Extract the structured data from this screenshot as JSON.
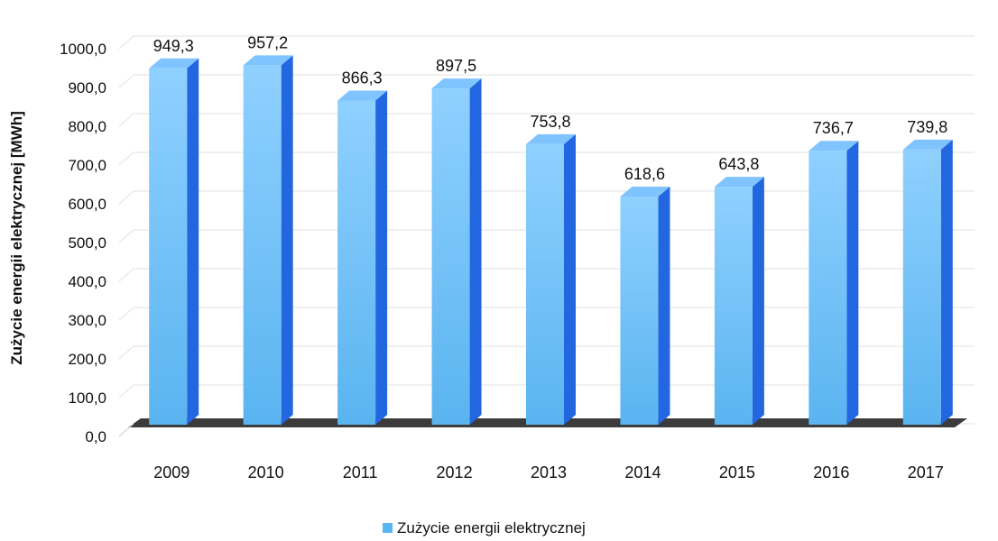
{
  "chart_data": {
    "type": "bar",
    "categories": [
      "2009",
      "2010",
      "2011",
      "2012",
      "2013",
      "2014",
      "2015",
      "2016",
      "2017"
    ],
    "series": [
      {
        "name": "Zużycie energii elektrycznej",
        "values": [
          949.3,
          957.2,
          866.3,
          897.5,
          753.8,
          618.6,
          643.8,
          736.7,
          739.8
        ],
        "value_labels": [
          "949,3",
          "957,2",
          "866,3",
          "897,5",
          "753,8",
          "618,6",
          "643,8",
          "736,7",
          "739,8"
        ]
      }
    ],
    "ylabel": "Zużycie energii elektrycznej   [MWh]",
    "ylim": [
      0,
      1000
    ],
    "yticks": [
      0,
      100,
      200,
      300,
      400,
      500,
      600,
      700,
      800,
      900,
      1000
    ],
    "ytick_labels": [
      "0,0",
      "100,0",
      "200,0",
      "300,0",
      "400,0",
      "500,0",
      "600,0",
      "700,0",
      "800,0",
      "900,0",
      "1000,0"
    ],
    "grid": true,
    "legend_position": "bottom",
    "style": "3d-columns",
    "colors": {
      "bar_front_top": "#8fd0ff",
      "bar_front_bottom": "#5ab4f0",
      "bar_side": "#2266e0",
      "bar_top": "#7fc4ff",
      "floor_shadow": "#000000",
      "grid": "#e2e2e2",
      "text": "#111111"
    }
  }
}
